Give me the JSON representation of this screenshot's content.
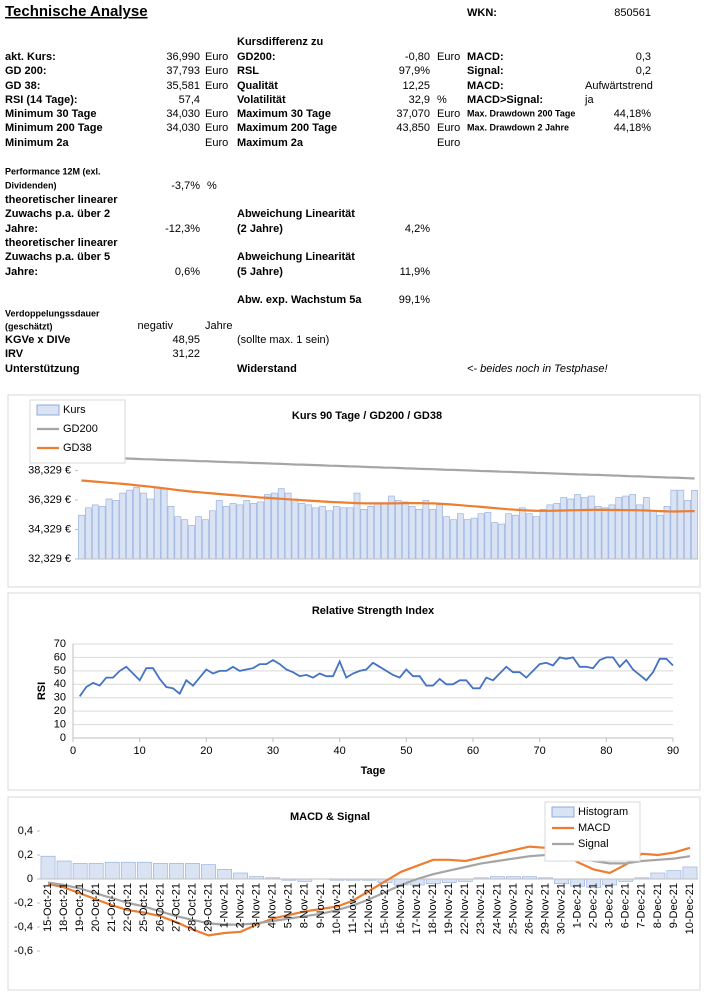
{
  "document": {
    "title": "Technische Analyse",
    "wkn_label": "WKN:",
    "wkn": "850561",
    "fields": [
      "Kursdifferenz zu",
      "akt. Kurs:",
      "36,990",
      "Euro",
      "GD200:",
      "-0,80",
      "Euro",
      "MACD:",
      "0,3",
      "GD 200:",
      "37,793",
      "Euro",
      "RSL",
      "97,9%",
      "Signal:",
      "0,2",
      "GD 38:",
      "35,581",
      "Euro",
      "Qualität",
      "12,25",
      "MACD:",
      "Aufwärtstrend",
      "RSI (14 Tage):",
      "57,4",
      "Volatilität",
      "32,9",
      "%",
      "MACD>Signal:",
      "ja",
      "Minimum 30 Tage",
      "34,030",
      "Euro",
      "Maximum 30 Tage",
      "37,070",
      "Euro",
      "Max. Drawdown 200 Tage",
      "44,18%",
      "Minimum 200 Tage",
      "34,030",
      "Euro",
      "Maximum 200 Tage",
      "43,850",
      "Euro",
      "Max. Drawdown 2 Jahre",
      "44,18%",
      "Minimum 2a",
      "Euro",
      "Maximum 2a",
      "Euro",
      "Performance 12M (exl.",
      "Dividenden)",
      "-3,7%",
      "%",
      "theoretischer linearer",
      "Zuwachs p.a. über 2",
      "Jahre:",
      "-12,3%",
      "Abweichung Linearität",
      "(2 Jahre)",
      "4,2%",
      "theoretischer linearer",
      "Zuwachs p.a. über 5",
      "Jahre:",
      "0,6%",
      "Abweichung Linearität",
      "(5 Jahre)",
      "11,9%",
      "Abw. exp. Wachstum 5a",
      "99,1%",
      "Verdoppelungssdauer",
      "(geschätzt)",
      "negativ",
      "Jahre",
      "KGVe x DIVe",
      "48,95",
      "(sollte max. 1 sein)",
      "IRV",
      "31,22",
      "Unterstützung",
      "Widerstand",
      "<- beides noch in Testphase!"
    ]
  },
  "chart_data": [
    {
      "type": "combo",
      "title": "Kurs 90 Tage / GD200 / GD38",
      "legend": "upper left",
      "grid": false,
      "ylim": [
        32.329,
        40.4
      ],
      "yticks": [
        {
          "value": 32.329,
          "label": "32,329 €"
        },
        {
          "value": 34.329,
          "label": "34,329 €"
        },
        {
          "value": 36.329,
          "label": "36,329 €"
        },
        {
          "value": 38.329,
          "label": "38,329 €"
        }
      ],
      "series": [
        {
          "name": "Kurs",
          "kind": "bar",
          "color": "#dae3f3",
          "edge_color": "#8faadc",
          "values": [
            35.3,
            35.8,
            36.0,
            35.9,
            36.4,
            36.3,
            36.8,
            37.0,
            37.2,
            36.8,
            36.4,
            37.2,
            37.1,
            35.9,
            35.2,
            35.0,
            34.6,
            35.2,
            35.0,
            35.6,
            36.3,
            35.9,
            36.1,
            36.0,
            36.3,
            36.1,
            36.2,
            36.7,
            36.8,
            37.1,
            36.8,
            36.4,
            36.1,
            36.0,
            35.8,
            35.9,
            35.6,
            35.9,
            35.8,
            35.8,
            36.8,
            35.7,
            35.9,
            36.1,
            36.1,
            36.6,
            36.3,
            36.2,
            35.9,
            35.7,
            36.3,
            35.7,
            36.0,
            35.2,
            35.0,
            35.4,
            35.0,
            35.1,
            35.4,
            35.5,
            34.8,
            34.7,
            35.4,
            35.3,
            35.8,
            35.4,
            35.2,
            35.7,
            36.0,
            36.1,
            36.5,
            36.4,
            36.7,
            36.5,
            36.6,
            35.9,
            35.8,
            36.0,
            36.5,
            36.6,
            36.7,
            36.0,
            36.5,
            35.6,
            35.3,
            35.9,
            37.0,
            37.0,
            36.3,
            36.99
          ]
        },
        {
          "name": "GD200",
          "kind": "line",
          "color": "#a5a5a5",
          "values": [
            39.25,
            39.23,
            39.22,
            39.2,
            39.19,
            39.17,
            39.15,
            39.14,
            39.12,
            39.1,
            39.09,
            39.07,
            39.05,
            39.04,
            39.02,
            39.01,
            38.99,
            38.97,
            38.96,
            38.94,
            38.92,
            38.91,
            38.89,
            38.88,
            38.86,
            38.84,
            38.83,
            38.81,
            38.79,
            38.78,
            38.76,
            38.74,
            38.73,
            38.71,
            38.7,
            38.68,
            38.66,
            38.65,
            38.63,
            38.61,
            38.6,
            38.58,
            38.56,
            38.55,
            38.53,
            38.52,
            38.5,
            38.48,
            38.47,
            38.45,
            38.43,
            38.42,
            38.4,
            38.38,
            38.37,
            38.35,
            38.34,
            38.32,
            38.3,
            38.29,
            38.27,
            38.25,
            38.24,
            38.22,
            38.21,
            38.19,
            38.17,
            38.16,
            38.14,
            38.12,
            38.11,
            38.09,
            38.07,
            38.06,
            38.04,
            38.03,
            38.01,
            37.99,
            37.98,
            37.96,
            37.94,
            37.93,
            37.91,
            37.89,
            37.88,
            37.86,
            37.85,
            37.83,
            37.81,
            37.79
          ]
        },
        {
          "name": "GD38",
          "kind": "line",
          "color": "#ed7d31",
          "values": [
            37.65,
            37.62,
            37.58,
            37.54,
            37.5,
            37.46,
            37.42,
            37.38,
            37.33,
            37.28,
            37.23,
            37.18,
            37.12,
            37.06,
            37.0,
            36.95,
            36.9,
            36.86,
            36.82,
            36.78,
            36.74,
            36.7,
            36.66,
            36.62,
            36.58,
            36.54,
            36.5,
            36.47,
            36.44,
            36.41,
            36.38,
            36.35,
            36.32,
            36.29,
            36.26,
            36.23,
            36.2,
            36.18,
            36.16,
            36.14,
            36.12,
            36.11,
            36.1,
            36.1,
            36.1,
            36.1,
            36.11,
            36.12,
            36.12,
            36.12,
            36.11,
            36.1,
            36.08,
            36.05,
            36.02,
            35.98,
            35.94,
            35.9,
            35.86,
            35.82,
            35.78,
            35.74,
            35.7,
            35.67,
            35.64,
            35.62,
            35.6,
            35.6,
            35.6,
            35.61,
            35.62,
            35.63,
            35.64,
            35.65,
            35.66,
            35.66,
            35.66,
            35.65,
            35.65,
            35.64,
            35.64,
            35.63,
            35.62,
            35.6,
            35.58,
            35.56,
            35.55,
            35.56,
            35.57,
            35.58
          ]
        }
      ]
    },
    {
      "type": "line",
      "title": "Relative Strength Index",
      "xlabel": "Tage",
      "ylabel": "RSI",
      "grid": true,
      "color": "#4472c4",
      "xlim": [
        0,
        90
      ],
      "xticks": [
        0,
        10,
        20,
        30,
        40,
        50,
        60,
        70,
        80,
        90
      ],
      "ylim": [
        0,
        70
      ],
      "yticks": [
        0,
        10,
        20,
        30,
        40,
        50,
        60,
        70
      ],
      "x": [
        1,
        2,
        3,
        4,
        5,
        6,
        7,
        8,
        9,
        10,
        11,
        12,
        13,
        14,
        15,
        16,
        17,
        18,
        19,
        20,
        21,
        22,
        23,
        24,
        25,
        26,
        27,
        28,
        29,
        30,
        31,
        32,
        33,
        34,
        35,
        36,
        37,
        38,
        39,
        40,
        41,
        42,
        43,
        44,
        45,
        46,
        47,
        48,
        49,
        50,
        51,
        52,
        53,
        54,
        55,
        56,
        57,
        58,
        59,
        60,
        61,
        62,
        63,
        64,
        65,
        66,
        67,
        68,
        69,
        70,
        71,
        72,
        73,
        74,
        75,
        76,
        77,
        78,
        79,
        80,
        81,
        82,
        83,
        84,
        85,
        86,
        87,
        88,
        89,
        90
      ],
      "values": [
        31,
        38,
        41,
        39,
        45,
        45,
        50,
        53,
        48,
        43,
        52,
        52,
        44,
        38,
        37,
        33,
        43,
        39,
        45,
        51,
        48,
        50,
        50,
        53,
        50,
        51,
        52,
        55,
        55,
        58,
        55,
        51,
        49,
        46,
        47,
        45,
        48,
        46,
        46,
        57,
        45,
        48,
        50,
        51,
        56,
        53,
        50,
        47,
        45,
        51,
        46,
        46,
        39,
        39,
        44,
        40,
        40,
        43,
        43,
        37,
        37,
        45,
        43,
        48,
        53,
        49,
        49,
        45,
        50,
        55,
        56,
        54,
        60,
        59,
        60,
        53,
        53,
        52,
        58,
        60,
        60,
        53,
        58,
        51,
        47,
        43,
        49,
        59,
        59,
        54
      ]
    },
    {
      "type": "combo",
      "title": "MACD & Signal",
      "legend": "upper right",
      "grid": false,
      "ylim": [
        -0.6,
        0.4
      ],
      "yticks": [
        {
          "value": -0.6,
          "label": "-0,6"
        },
        {
          "value": -0.4,
          "label": "-0,4"
        },
        {
          "value": -0.2,
          "label": "-0,2"
        },
        0,
        {
          "value": 0.2,
          "label": "0,2"
        },
        {
          "value": 0.4,
          "label": "0,4"
        }
      ],
      "categories": [
        "15-Oct-21",
        "18-Oct-21",
        "19-Oct-21",
        "20-Oct-21",
        "21-Oct-21",
        "22-Oct-21",
        "25-Oct-21",
        "26-Oct-21",
        "27-Oct-21",
        "28-Oct-21",
        "29-Oct-21",
        "1-Nov-21",
        "2-Nov-21",
        "3-Nov-21",
        "4-Nov-21",
        "5-Nov-21",
        "8-Nov-21",
        "9-Nov-21",
        "10-Nov-21",
        "11-Nov-21",
        "12-Nov-21",
        "15-Nov-21",
        "16-Nov-21",
        "17-Nov-21",
        "18-Nov-21",
        "19-Nov-21",
        "22-Nov-21",
        "23-Nov-21",
        "24-Nov-21",
        "25-Nov-21",
        "26-Nov-21",
        "29-Nov-21",
        "30-Nov-21",
        "1-Dec-21",
        "2-Dec-21",
        "3-Dec-21",
        "6-Dec-21",
        "7-Dec-21",
        "8-Dec-21",
        "9-Dec-21",
        "10-Dec-21"
      ],
      "series": [
        {
          "name": "Histogram",
          "kind": "bar",
          "color": "#dae3f3",
          "edge_color": "#8faadc",
          "values": [
            0.19,
            0.15,
            0.13,
            0.13,
            0.14,
            0.14,
            0.14,
            0.13,
            0.13,
            0.13,
            0.12,
            0.08,
            0.05,
            0.02,
            0.01,
            -0.01,
            -0.02,
            0.0,
            -0.01,
            -0.01,
            -0.01,
            -0.03,
            -0.05,
            -0.05,
            -0.04,
            -0.03,
            -0.02,
            0.01,
            0.02,
            0.02,
            0.02,
            0.01,
            -0.04,
            -0.06,
            -0.07,
            -0.05,
            -0.02,
            0.01,
            0.05,
            0.07,
            0.1
          ]
        },
        {
          "name": "MACD",
          "kind": "line",
          "color": "#ed7d31",
          "values": [
            -0.04,
            -0.07,
            -0.12,
            -0.17,
            -0.22,
            -0.26,
            -0.28,
            -0.31,
            -0.36,
            -0.42,
            -0.47,
            -0.45,
            -0.44,
            -0.38,
            -0.33,
            -0.3,
            -0.27,
            -0.25,
            -0.23,
            -0.18,
            -0.1,
            -0.02,
            0.06,
            0.11,
            0.16,
            0.16,
            0.15,
            0.18,
            0.21,
            0.24,
            0.27,
            0.26,
            0.23,
            0.14,
            0.08,
            0.05,
            0.12,
            0.21,
            0.2,
            0.22,
            0.26
          ]
        },
        {
          "name": "Signal",
          "kind": "line",
          "color": "#a5a5a5",
          "values": [
            -0.03,
            -0.05,
            -0.08,
            -0.12,
            -0.16,
            -0.2,
            -0.23,
            -0.27,
            -0.31,
            -0.34,
            -0.37,
            -0.38,
            -0.38,
            -0.37,
            -0.35,
            -0.33,
            -0.31,
            -0.29,
            -0.26,
            -0.22,
            -0.17,
            -0.11,
            -0.05,
            0.0,
            0.04,
            0.07,
            0.1,
            0.13,
            0.15,
            0.17,
            0.19,
            0.2,
            0.2,
            0.18,
            0.15,
            0.13,
            0.13,
            0.15,
            0.16,
            0.17,
            0.19
          ]
        }
      ]
    }
  ]
}
